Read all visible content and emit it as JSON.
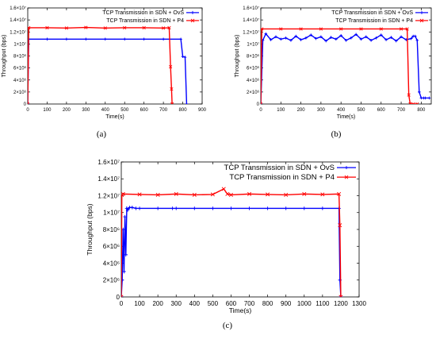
{
  "chart_data": [
    {
      "type": "line",
      "caption": "(a)",
      "xlabel": "Time(s)",
      "ylabel": "Throughput (bps)",
      "xlim": [
        0,
        900
      ],
      "ylim": [
        0,
        16000000
      ],
      "x_ticks": [
        0,
        100,
        200,
        300,
        400,
        500,
        600,
        700,
        800,
        900
      ],
      "y_ticks": [
        0,
        2000000,
        4000000,
        6000000,
        8000000,
        10000000,
        12000000,
        14000000,
        16000000
      ],
      "y_tick_labels": [
        "0",
        "2×10⁶",
        "4×10⁶",
        "6×10⁶",
        "8×10⁶",
        "1×10⁷",
        "1.2×10⁷",
        "1.4×10⁷",
        "1.6×10⁷"
      ],
      "grid": false,
      "legend_position": "top-right",
      "series": [
        {
          "name": "TCP Transmission in SDN + OvS",
          "color": "#0000ff",
          "marker": "plus",
          "x": [
            0,
            5,
            100,
            200,
            300,
            400,
            500,
            600,
            700,
            790,
            800,
            812,
            820
          ],
          "y": [
            0,
            10800000,
            10800000,
            10800000,
            10800000,
            10800000,
            10800000,
            10800000,
            10800000,
            10800000,
            7900000,
            7800000,
            0
          ]
        },
        {
          "name": "TCP Transmission in SDN + P4",
          "color": "#ff0000",
          "marker": "x",
          "x": [
            0,
            5,
            100,
            200,
            300,
            400,
            500,
            600,
            700,
            730,
            737,
            742,
            745
          ],
          "y": [
            0,
            12700000,
            12700000,
            12650000,
            12750000,
            12650000,
            12700000,
            12700000,
            12650000,
            12700000,
            6200000,
            2500000,
            0
          ]
        }
      ]
    },
    {
      "type": "line",
      "caption": "(b)",
      "xlabel": "Time(s)",
      "ylabel": "Throughput (bps)",
      "xlim": [
        0,
        850
      ],
      "ylim": [
        0,
        16000000
      ],
      "x_ticks": [
        0,
        100,
        200,
        300,
        400,
        500,
        600,
        700,
        800
      ],
      "y_ticks": [
        0,
        2000000,
        4000000,
        6000000,
        8000000,
        10000000,
        12000000,
        14000000,
        16000000
      ],
      "y_tick_labels": [
        "0",
        "2×10⁶",
        "4×10⁶",
        "6×10⁶",
        "8×10⁶",
        "1×10⁷",
        "1.2×10⁷",
        "1.4×10⁷",
        "1.6×10⁷"
      ],
      "grid": false,
      "legend_position": "top-right",
      "series": [
        {
          "name": "TCP Transmission in SDN + OvS",
          "color": "#0000ff",
          "marker": "plus",
          "x": [
            0,
            10,
            25,
            50,
            75,
            100,
            125,
            150,
            175,
            200,
            225,
            250,
            275,
            300,
            325,
            350,
            375,
            400,
            425,
            450,
            475,
            500,
            525,
            550,
            575,
            600,
            625,
            650,
            675,
            700,
            725,
            750,
            760,
            770,
            780,
            790,
            800,
            812,
            820,
            840
          ],
          "y": [
            0,
            10600000,
            11700000,
            10700000,
            11200000,
            10800000,
            11000000,
            10600000,
            11300000,
            10700000,
            11000000,
            11500000,
            10900000,
            11200000,
            10500000,
            11100000,
            10800000,
            11400000,
            10600000,
            11000000,
            11600000,
            10800000,
            11200000,
            10600000,
            11000000,
            11500000,
            10700000,
            11100000,
            10500000,
            11200000,
            10700000,
            10900000,
            11300000,
            11300000,
            10600000,
            2000000,
            1000000,
            1000000,
            1000000,
            1000000
          ]
        },
        {
          "name": "TCP Transmission in SDN + P4",
          "color": "#ff0000",
          "marker": "x",
          "x": [
            0,
            5,
            100,
            200,
            300,
            400,
            500,
            600,
            700,
            730,
            738,
            745,
            760,
            780
          ],
          "y": [
            0,
            12500000,
            12500000,
            12500000,
            12500000,
            12500000,
            12500000,
            12500000,
            12500000,
            12500000,
            1500000,
            0,
            0,
            0
          ]
        }
      ]
    },
    {
      "type": "line",
      "caption": "(c)",
      "xlabel": "Time(s)",
      "ylabel": "Throughput (bps)",
      "xlim": [
        0,
        1300
      ],
      "ylim": [
        0,
        16000000
      ],
      "x_ticks": [
        0,
        100,
        200,
        300,
        400,
        500,
        600,
        700,
        800,
        900,
        1000,
        1100,
        1200,
        1300
      ],
      "y_ticks": [
        0,
        2000000,
        4000000,
        6000000,
        8000000,
        10000000,
        12000000,
        14000000,
        16000000
      ],
      "y_tick_labels": [
        "0",
        "2×10⁶",
        "4×10⁶",
        "6×10⁶",
        "8×10⁶",
        "1×10⁷",
        "1.2×10⁷",
        "1.4×10⁷",
        "1.6×10⁷"
      ],
      "grid": false,
      "legend_position": "top-right",
      "series": [
        {
          "name": "TCP Transmission in SDN + OvS",
          "color": "#0000ff",
          "marker": "plus",
          "x": [
            0,
            5,
            10,
            15,
            20,
            25,
            30,
            35,
            45,
            60,
            80,
            100,
            200,
            280,
            300,
            400,
            500,
            600,
            700,
            800,
            900,
            1000,
            1100,
            1190,
            1195,
            1200
          ],
          "y": [
            0,
            2000000,
            8000000,
            3000000,
            9500000,
            5000000,
            10500000,
            10300000,
            10600000,
            10600000,
            10500000,
            10500000,
            10500000,
            10500000,
            10500000,
            10500000,
            10500000,
            10500000,
            10500000,
            10500000,
            10500000,
            10500000,
            10500000,
            10500000,
            2000000,
            0
          ]
        },
        {
          "name": "TCP Transmission in SDN + P4",
          "color": "#ff0000",
          "marker": "x",
          "x": [
            0,
            3,
            10,
            100,
            200,
            300,
            400,
            500,
            560,
            580,
            600,
            700,
            800,
            900,
            1000,
            1100,
            1190,
            1195,
            1200
          ],
          "y": [
            0,
            12100000,
            12200000,
            12150000,
            12100000,
            12200000,
            12100000,
            12150000,
            12800000,
            12200000,
            12100000,
            12200000,
            12150000,
            12100000,
            12200000,
            12150000,
            12200000,
            8500000,
            0
          ]
        }
      ]
    }
  ]
}
